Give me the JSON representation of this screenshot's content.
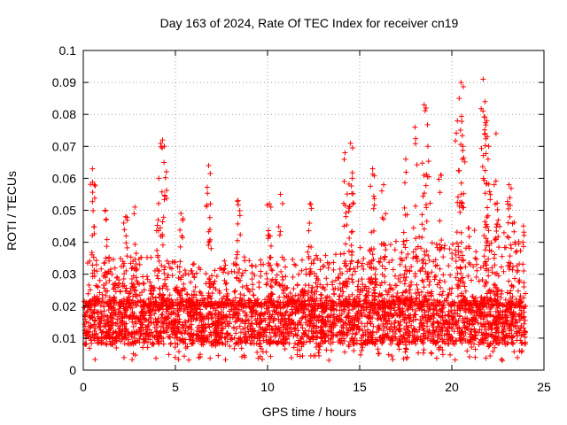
{
  "chart_data": {
    "type": "scatter",
    "title": "Day 163 of 2024, Rate Of TEC Index for receiver cn19",
    "xlabel": "GPS time / hours",
    "ylabel": "ROTI / TECUs",
    "xlim": [
      0,
      25
    ],
    "ylim": [
      0,
      0.1
    ],
    "xticks": [
      "0",
      "5",
      "10",
      "15",
      "20",
      "25"
    ],
    "yticks": [
      "0",
      "0.01",
      "0.02",
      "0.03",
      "0.04",
      "0.05",
      "0.06",
      "0.07",
      "0.08",
      "0.09",
      "0.1"
    ],
    "grid": true,
    "marker": "plus",
    "color": "#ff0000",
    "x_range_of_data": [
      0,
      24
    ],
    "typical_band": [
      0.008,
      0.022
    ],
    "spikes": [
      {
        "x": 0.5,
        "y": 0.063
      },
      {
        "x": 0.6,
        "y": 0.058
      },
      {
        "x": 1.2,
        "y": 0.05
      },
      {
        "x": 2.3,
        "y": 0.048
      },
      {
        "x": 2.8,
        "y": 0.051
      },
      {
        "x": 4.1,
        "y": 0.06
      },
      {
        "x": 4.3,
        "y": 0.072
      },
      {
        "x": 4.4,
        "y": 0.07
      },
      {
        "x": 5.3,
        "y": 0.049
      },
      {
        "x": 6.8,
        "y": 0.064
      },
      {
        "x": 6.9,
        "y": 0.052
      },
      {
        "x": 8.4,
        "y": 0.053
      },
      {
        "x": 10.1,
        "y": 0.052
      },
      {
        "x": 10.7,
        "y": 0.055
      },
      {
        "x": 12.3,
        "y": 0.052
      },
      {
        "x": 14.2,
        "y": 0.068
      },
      {
        "x": 14.5,
        "y": 0.071
      },
      {
        "x": 14.6,
        "y": 0.06
      },
      {
        "x": 15.7,
        "y": 0.063
      },
      {
        "x": 16.3,
        "y": 0.058
      },
      {
        "x": 17.5,
        "y": 0.066
      },
      {
        "x": 18.0,
        "y": 0.076
      },
      {
        "x": 18.5,
        "y": 0.083
      },
      {
        "x": 18.6,
        "y": 0.082
      },
      {
        "x": 18.7,
        "y": 0.07
      },
      {
        "x": 19.4,
        "y": 0.061
      },
      {
        "x": 20.3,
        "y": 0.078
      },
      {
        "x": 20.4,
        "y": 0.085
      },
      {
        "x": 20.5,
        "y": 0.09
      },
      {
        "x": 20.6,
        "y": 0.07
      },
      {
        "x": 21.7,
        "y": 0.091
      },
      {
        "x": 21.8,
        "y": 0.084
      },
      {
        "x": 21.9,
        "y": 0.078
      },
      {
        "x": 22.0,
        "y": 0.07
      },
      {
        "x": 22.4,
        "y": 0.074
      },
      {
        "x": 23.1,
        "y": 0.058
      }
    ]
  }
}
